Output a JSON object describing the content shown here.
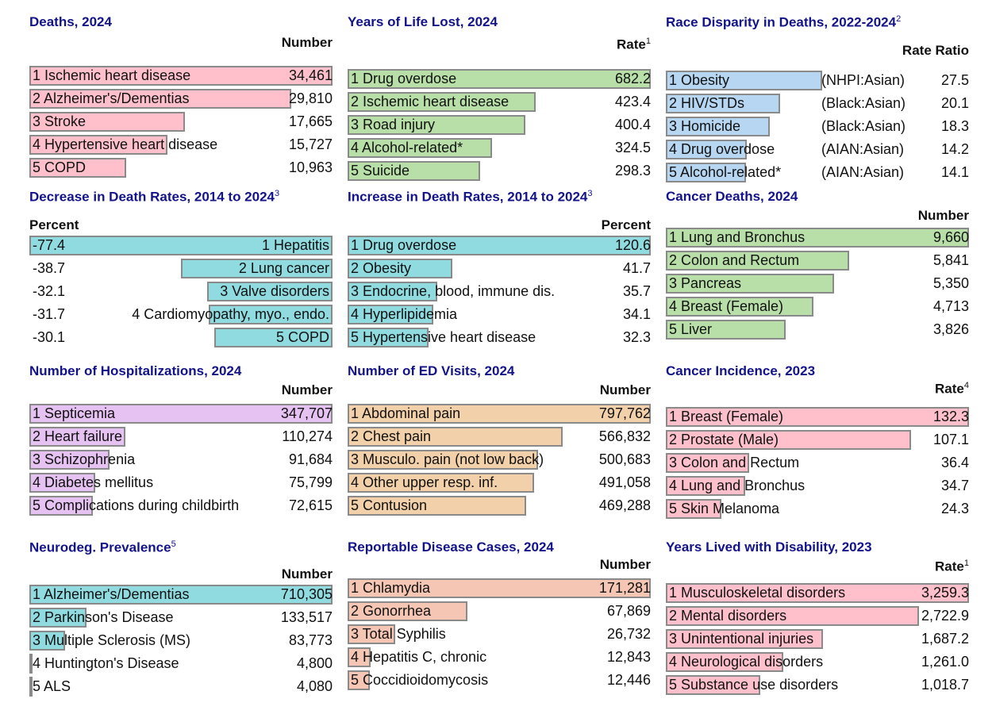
{
  "colors": {
    "title": "#12128a",
    "pink": "#ffc0cb",
    "green": "#b8dfa8",
    "blue": "#b6d6f2",
    "teal": "#8fdbe0",
    "purple": "#e6c2f2",
    "tan": "#f2d0a9",
    "salmon": "#f6c6b4",
    "border": "#8a8a8a"
  },
  "chart_data": [
    {
      "id": "deaths",
      "type": "bar",
      "title": "Deaths, 2024",
      "column_header": "Number",
      "color": "pink",
      "categories": [
        "1 Ischemic heart disease",
        "2 Alzheimer's/Dementias",
        "3 Stroke",
        "4 Hypertensive heart disease",
        "5 COPD"
      ],
      "values": [
        34461,
        29810,
        17665,
        15727,
        10963
      ],
      "value_labels": [
        "34,461",
        "29,810",
        "17,665",
        "15,727",
        "10,963"
      ]
    },
    {
      "id": "yll",
      "type": "bar",
      "title": "Years of Life Lost, 2024",
      "column_header": "Rate",
      "column_header_sup": "1",
      "color": "green",
      "categories": [
        "1 Drug overdose",
        "2 Ischemic heart disease",
        "3 Road injury",
        "4 Alcohol-related*",
        "5 Suicide"
      ],
      "values": [
        682.2,
        423.4,
        400.4,
        324.5,
        298.3
      ],
      "value_labels": [
        "682.2",
        "423.4",
        "400.4",
        "324.5",
        "298.3"
      ]
    },
    {
      "id": "race",
      "type": "bar",
      "title": "Race Disparity in Deaths, 2022-2024",
      "title_sup": "2",
      "column_header": "Rate Ratio",
      "color": "blue",
      "categories": [
        "1 Obesity",
        "2 HIV/STDs",
        "3 Homicide",
        "4 Drug overdose",
        "5 Alcohol-related*"
      ],
      "groups": [
        "(NHPI:Asian)",
        "(Black:Asian)",
        "(Black:Asian)",
        "(AIAN:Asian)",
        "(AIAN:Asian)"
      ],
      "values": [
        27.5,
        20.1,
        18.3,
        14.2,
        14.1
      ],
      "value_labels": [
        "27.5",
        "20.1",
        "18.3",
        "14.2",
        "14.1"
      ]
    },
    {
      "id": "decrease",
      "type": "bar",
      "title": "Decrease in Death Rates, 2014 to 2024",
      "title_sup": "3",
      "column_header": "Percent",
      "color": "teal",
      "categories": [
        "1 Hepatitis",
        "2 Lung cancer",
        "3 Valve disorders",
        "4 Cardiomyopathy, myo., endo.",
        "5 COPD"
      ],
      "values": [
        -77.4,
        -38.7,
        -32.1,
        -31.7,
        -30.1
      ],
      "value_labels": [
        "-77.4",
        "-38.7",
        "-32.1",
        "-31.7",
        "-30.1"
      ]
    },
    {
      "id": "increase",
      "type": "bar",
      "title": "Increase in Death Rates, 2014 to 2024",
      "title_sup": "3",
      "column_header": "Percent",
      "color": "teal",
      "categories": [
        "1 Drug overdose",
        "2 Obesity",
        "3 Endocrine, blood, immune dis.",
        "4 Hyperlipidemia",
        "5 Hypertensive heart disease"
      ],
      "values": [
        120.6,
        41.7,
        35.7,
        34.1,
        32.3
      ],
      "value_labels": [
        "120.6",
        "41.7",
        "35.7",
        "34.1",
        "32.3"
      ]
    },
    {
      "id": "cancer_deaths",
      "type": "bar",
      "title": "Cancer Deaths, 2024",
      "column_header": "Number",
      "color": "green",
      "categories": [
        "1 Lung and Bronchus",
        "2 Colon and Rectum",
        "3 Pancreas",
        "4 Breast (Female)",
        "5 Liver"
      ],
      "values": [
        9660,
        5841,
        5350,
        4713,
        3826
      ],
      "value_labels": [
        "9,660",
        "5,841",
        "5,350",
        "4,713",
        "3,826"
      ]
    },
    {
      "id": "hosp",
      "type": "bar",
      "title": "Number of Hospitalizations, 2024",
      "column_header": "Number",
      "color": "purple",
      "categories": [
        "1 Septicemia",
        "2 Heart failure",
        "3 Schizophrenia",
        "4 Diabetes mellitus",
        "5 Complications during childbirth"
      ],
      "values": [
        347707,
        110274,
        91684,
        75799,
        72615
      ],
      "value_labels": [
        "347,707",
        "110,274",
        "91,684",
        "75,799",
        "72,615"
      ]
    },
    {
      "id": "ed",
      "type": "bar",
      "title": "Number of ED Visits, 2024",
      "column_header": "Number",
      "color": "tan",
      "categories": [
        "1 Abdominal pain",
        "2 Chest pain",
        "3 Musculo. pain (not low back)",
        "4 Other upper resp. inf.",
        "5 Contusion"
      ],
      "values": [
        797762,
        566832,
        500683,
        491058,
        469288
      ],
      "value_labels": [
        "797,762",
        "566,832",
        "500,683",
        "491,058",
        "469,288"
      ]
    },
    {
      "id": "cancer_inc",
      "type": "bar",
      "title": "Cancer Incidence, 2023",
      "column_header": "Rate",
      "column_header_sup": "4",
      "color": "pink",
      "categories": [
        "1 Breast (Female)",
        "2 Prostate (Male)",
        "3 Colon and Rectum",
        "4 Lung and Bronchus",
        "5 Skin Melanoma"
      ],
      "values": [
        132.3,
        107.1,
        36.4,
        34.7,
        24.3
      ],
      "value_labels": [
        "132.3",
        "107.1",
        "36.4",
        "34.7",
        "24.3"
      ]
    },
    {
      "id": "neuro",
      "type": "bar",
      "title": "Neurodeg. Prevalence",
      "title_sup": "5",
      "column_header": "Number",
      "color": "teal",
      "categories": [
        "1 Alzheimer's/Dementias",
        "2 Parkinson's Disease",
        "3 Multiple Sclerosis (MS)",
        "4 Huntington's Disease",
        "5 ALS"
      ],
      "values": [
        710305,
        133517,
        83773,
        4800,
        4080
      ],
      "value_labels": [
        "710,305",
        "133,517",
        "83,773",
        "4,800",
        "4,080"
      ]
    },
    {
      "id": "reportable",
      "type": "bar",
      "title": "Reportable Disease Cases, 2024",
      "column_header": "Number",
      "color": "salmon",
      "categories": [
        "1 Chlamydia",
        "2 Gonorrhea",
        "3 Total Syphilis",
        "4 Hepatitis C, chronic",
        "5 Coccidioidomycosis"
      ],
      "values": [
        171281,
        67869,
        26732,
        12843,
        12446
      ],
      "value_labels": [
        "171,281",
        "67,869",
        "26,732",
        "12,843",
        "12,446"
      ]
    },
    {
      "id": "yld",
      "type": "bar",
      "title": "Years Lived with Disability, 2023",
      "column_header": "Rate",
      "column_header_sup": "1",
      "color": "pink",
      "categories": [
        "1 Musculoskeletal disorders",
        "2 Mental disorders",
        "3 Unintentional injuries",
        "4 Neurological disorders",
        "5 Substance use disorders"
      ],
      "values": [
        3259.3,
        2722.9,
        1687.2,
        1261.0,
        1018.7
      ],
      "value_labels": [
        "3,259.3",
        "2,722.9",
        "1,687.2",
        "1,261.0",
        "1,018.7"
      ]
    }
  ]
}
